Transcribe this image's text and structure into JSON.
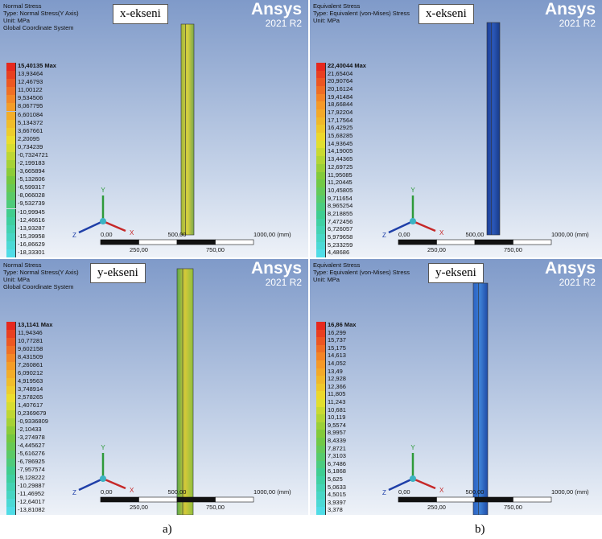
{
  "figure": {
    "panels": [
      {
        "title": "Normal Stress",
        "type": "Type: Normal Stress(Y Axis)",
        "unit": "Unit: MPa",
        "coordinate_system": "Global Coordinate System",
        "brand": "Ansys",
        "version": "2021 R2",
        "axis_label": "x-ekseni",
        "legend": [
          "15,40135 Max",
          "13,93464",
          "12,46793",
          "11,00122",
          "9,534506",
          "8,067795",
          "6,601084",
          "5,134372",
          "3,667661",
          "2,20095",
          "0,734239",
          "-0,7324721",
          "-2,199183",
          "-3,665894",
          "-5,132606",
          "-6,599317",
          "-8,066028",
          "-9,532739",
          "-10,99945",
          "-12,46616",
          "-13,93287",
          "-15,39958",
          "-16,86629",
          "-18,33301"
        ],
        "triad": {
          "y": "Y",
          "x": "X",
          "z": "Z"
        },
        "scale": [
          "0,00",
          "250,00",
          "500,00",
          "750,00",
          "1000,00 (mm)"
        ]
      },
      {
        "title": "Equivalent Stress",
        "type": "Type: Equivalent (von-Mises) Stress",
        "unit": "Unit: MPa",
        "brand": "Ansys",
        "version": "2021 R2",
        "axis_label": "x-ekseni",
        "legend": [
          "22,40044 Max",
          "21,65404",
          "20,90764",
          "20,16124",
          "19,41484",
          "18,66844",
          "17,92204",
          "17,17564",
          "16,42925",
          "15,68285",
          "14,93645",
          "14,19005",
          "13,44365",
          "12,69725",
          "11,95085",
          "11,20445",
          "10,45805",
          "9,711654",
          "8,965254",
          "8,218855",
          "7,472456",
          "6,726057",
          "5,979658",
          "5,233259",
          "4,48686"
        ],
        "triad": {
          "y": "Y",
          "x": "X",
          "z": "Z"
        },
        "scale": [
          "0,00",
          "250,00",
          "500,00",
          "750,00",
          "1000,00 (mm)"
        ]
      },
      {
        "title": "Normal Stress",
        "type": "Type: Normal Stress(Y Axis)",
        "unit": "Unit: MPa",
        "coordinate_system": "Global Coordinate System",
        "brand": "Ansys",
        "version": "2021 R2",
        "axis_label": "y-ekseni",
        "legend": [
          "13,1141 Max",
          "11,94346",
          "10,77281",
          "9,602158",
          "8,431509",
          "7,260861",
          "6,090212",
          "4,919563",
          "3,748914",
          "2,578265",
          "1,407617",
          "0,2369679",
          "-0,9336809",
          "-2,10433",
          "-3,274978",
          "-4,445627",
          "-5,616276",
          "-6,786925",
          "-7,957574",
          "-9,128222",
          "-10,29887",
          "-11,46952",
          "-12,64017",
          "-13,81082"
        ],
        "triad": {
          "y": "Y",
          "x": "X",
          "z": "Z"
        },
        "scale": [
          "0,00",
          "250,00",
          "500,00",
          "750,00",
          "1000,00 (mm)"
        ]
      },
      {
        "title": "Equivalent Stress",
        "type": "Type: Equivalent (von-Mises) Stress",
        "unit": "Unit: MPa",
        "brand": "Ansys",
        "version": "2021 R2",
        "axis_label": "y-ekseni",
        "legend": [
          "16,86 Max",
          "16,299",
          "15,737",
          "15,175",
          "14,613",
          "14,052",
          "13,49",
          "12,928",
          "12,366",
          "11,805",
          "11,243",
          "10,681",
          "10,119",
          "9,5574",
          "8,9957",
          "8,4339",
          "7,8721",
          "7,3103",
          "6,7486",
          "6,1868",
          "5,625",
          "5,0633",
          "4,5015",
          "3,9397",
          "3,378"
        ],
        "triad": {
          "y": "Y",
          "x": "X",
          "z": "Z"
        },
        "scale": [
          "0,00",
          "250,00",
          "500,00",
          "750,00",
          "1000,00 (mm)"
        ]
      }
    ],
    "captions": [
      "a)",
      "b)"
    ]
  }
}
